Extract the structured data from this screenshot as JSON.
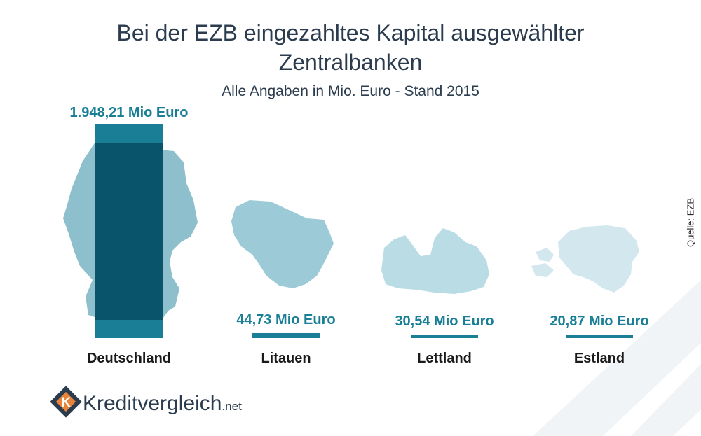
{
  "title_line1": "Bei der EZB eingezahltes Kapital ausgewählter",
  "title_line2": "Zentralbanken",
  "subtitle": "Alle Angaben in Mio. Euro - Stand 2015",
  "source": "Quelle: EZB",
  "logo": {
    "name": "Kreditvergleich",
    "suffix": ".net",
    "icon": "k-diamond-icon"
  },
  "colors": {
    "accent": "#1a7f96",
    "bar_dark": "#09546b",
    "label": "#1a7f96",
    "title": "#2b3c4e",
    "map_de": "#8dbfcc",
    "map_lt": "#9ccad7",
    "map_lv": "#b9dce5",
    "map_ee": "#d3e8ee",
    "watermark": "#f1f4f6"
  },
  "chart_data": {
    "type": "bar",
    "title": "Bei der EZB eingezahltes Kapital ausgewählter Zentralbanken",
    "subtitle": "Alle Angaben in Mio. Euro - Stand 2015",
    "categories": [
      "Deutschland",
      "Litauen",
      "Lettland",
      "Estland"
    ],
    "values": [
      1948.21,
      44.73,
      30.54,
      20.87
    ],
    "value_labels": [
      "1.948,21 Mio Euro",
      "44,73 Mio Euro",
      "30,54 Mio Euro",
      "20,87 Mio Euro"
    ],
    "unit": "Mio Euro",
    "grid": false,
    "legend": "none"
  }
}
